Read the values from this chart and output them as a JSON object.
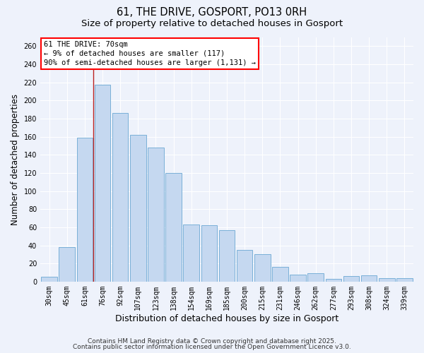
{
  "title": "61, THE DRIVE, GOSPORT, PO13 0RH",
  "subtitle": "Size of property relative to detached houses in Gosport",
  "xlabel": "Distribution of detached houses by size in Gosport",
  "ylabel": "Number of detached properties",
  "bar_color": "#c5d8f0",
  "bar_edge_color": "#7ab0d8",
  "background_color": "#eef2fb",
  "grid_color": "#ffffff",
  "categories": [
    "30sqm",
    "45sqm",
    "61sqm",
    "76sqm",
    "92sqm",
    "107sqm",
    "123sqm",
    "138sqm",
    "154sqm",
    "169sqm",
    "185sqm",
    "200sqm",
    "215sqm",
    "231sqm",
    "246sqm",
    "262sqm",
    "277sqm",
    "293sqm",
    "308sqm",
    "324sqm",
    "339sqm"
  ],
  "values": [
    5,
    38,
    159,
    217,
    186,
    162,
    148,
    120,
    63,
    62,
    57,
    35,
    30,
    16,
    8,
    9,
    3,
    6,
    7,
    4,
    4
  ],
  "ylim": [
    0,
    270
  ],
  "yticks": [
    0,
    20,
    40,
    60,
    80,
    100,
    120,
    140,
    160,
    180,
    200,
    220,
    240,
    260
  ],
  "vline_color": "#bb2222",
  "annotation_box_text": "61 THE DRIVE: 70sqm\n← 9% of detached houses are smaller (117)\n90% of semi-detached houses are larger (1,131) →",
  "footer1": "Contains HM Land Registry data © Crown copyright and database right 2025.",
  "footer2": "Contains public sector information licensed under the Open Government Licence v3.0.",
  "title_fontsize": 10.5,
  "subtitle_fontsize": 9.5,
  "tick_fontsize": 7,
  "ylabel_fontsize": 8.5,
  "xlabel_fontsize": 9,
  "annotation_fontsize": 7.5,
  "footer_fontsize": 6.5
}
